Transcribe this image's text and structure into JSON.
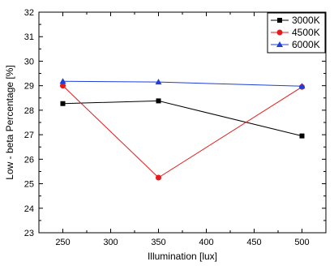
{
  "chart_data": {
    "type": "line",
    "xlabel": "Illumination [lux]",
    "ylabel": "Low - beta Percentage [%]",
    "xlim": [
      225,
      525
    ],
    "ylim": [
      23,
      32
    ],
    "xticks": [
      250,
      300,
      350,
      400,
      450,
      500
    ],
    "yticks": [
      23,
      24,
      25,
      26,
      27,
      28,
      29,
      30,
      31,
      32
    ],
    "grid": false,
    "legend_position": "top-right",
    "series": [
      {
        "name": "3000K",
        "color": "#000000",
        "marker": "square",
        "x": [
          250,
          350,
          500
        ],
        "y": [
          28.27,
          28.38,
          26.95
        ]
      },
      {
        "name": "4500K",
        "color": "#e41a1c",
        "marker": "circle",
        "x": [
          250,
          350,
          500
        ],
        "y": [
          29.0,
          25.25,
          28.95
        ]
      },
      {
        "name": "6000K",
        "color": "#1f3fd8",
        "marker": "triangle",
        "x": [
          250,
          350,
          500
        ],
        "y": [
          29.18,
          29.15,
          28.98
        ]
      }
    ]
  }
}
